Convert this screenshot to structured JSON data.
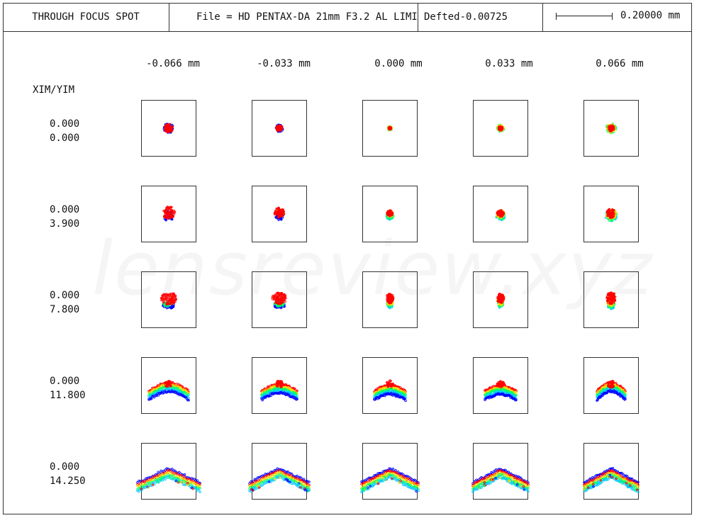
{
  "header": {
    "title": "THROUGH FOCUS SPOT",
    "file_label": "File = HD PENTAX-DA 21mm F3.2 AL LIMI",
    "shift_label": "Defted-0.00725",
    "scale_value": "0.20000 mm"
  },
  "columns": [
    "-0.066  mm",
    "-0.033  mm",
    "0.000  mm",
    "0.033  mm",
    "0.066  mm"
  ],
  "row_header": "XIM/YIM",
  "rows": [
    {
      "xim": "0.000",
      "yim": "0.000"
    },
    {
      "xim": "0.000",
      "yim": "3.900"
    },
    {
      "xim": "0.000",
      "yim": "7.800"
    },
    {
      "xim": "0.000",
      "yim": "11.800"
    },
    {
      "xim": "0.000",
      "yim": "14.250"
    }
  ],
  "wavelength_colors": [
    "#0000ff",
    "#00c8ff",
    "#00ff66",
    "#ffd800",
    "#ff0000"
  ],
  "watermark": "lensreview.xyz"
}
